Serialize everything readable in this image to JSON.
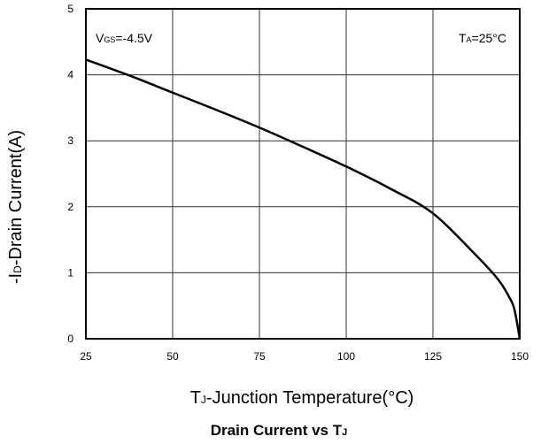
{
  "chart_data": {
    "type": "line",
    "title": "Drain Current vs T",
    "title_sub": "J",
    "xlabel": {
      "main": "T",
      "sub": "J",
      "rest": "-Junction Temperature(°C)"
    },
    "ylabel": {
      "main": "-I",
      "sub": "D",
      "rest": "-Drain Current(A)"
    },
    "xlim": [
      25,
      150
    ],
    "ylim": [
      0,
      5
    ],
    "xticks": [
      25,
      50,
      75,
      100,
      125,
      150
    ],
    "yticks": [
      0,
      1,
      2,
      3,
      4,
      5
    ],
    "grid": true,
    "annotations": [
      {
        "main": "V",
        "sub": "GS",
        "rest": "=-4.5V",
        "position": "top-left"
      },
      {
        "main": "T",
        "sub": "A",
        "rest": "=25°C",
        "position": "top-right"
      }
    ],
    "series": [
      {
        "x": [
          25,
          37.5,
          50,
          62.5,
          75,
          87.5,
          100,
          112.5,
          125,
          137.5,
          143.75,
          146.875,
          148.4375,
          150
        ],
        "values": [
          4.23,
          3.99,
          3.73,
          3.47,
          3.2,
          2.91,
          2.61,
          2.28,
          1.9,
          1.26,
          0.9,
          0.64,
          0.45,
          0
        ]
      }
    ]
  }
}
